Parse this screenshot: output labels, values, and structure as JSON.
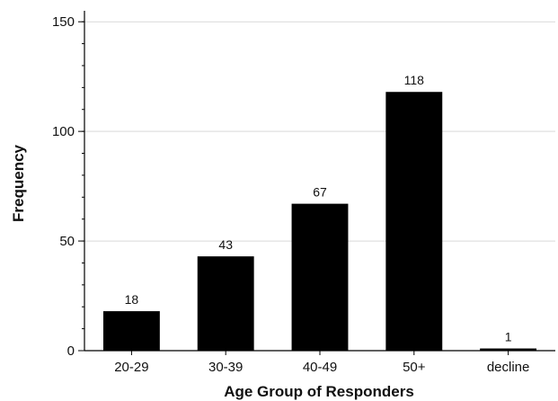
{
  "chart_data": {
    "type": "bar",
    "categories": [
      "20-29",
      "30-39",
      "40-49",
      "50+",
      "decline"
    ],
    "values": [
      18,
      43,
      67,
      118,
      1
    ],
    "data_labels": [
      "18",
      "43",
      "67",
      "118",
      "1"
    ],
    "title": "",
    "xlabel": "Age Group of Responders",
    "ylabel": "Frequency",
    "ylim": [
      0,
      155
    ],
    "yticks": [
      0,
      50,
      100,
      150
    ],
    "ytick_labels": [
      "0",
      "50",
      "100",
      "150"
    ],
    "minor_ytick_step": 10,
    "grid": true,
    "legend": "none",
    "bar_color": "#000000",
    "grid_color": "#d9d9d9",
    "axis_color": "#000000"
  }
}
